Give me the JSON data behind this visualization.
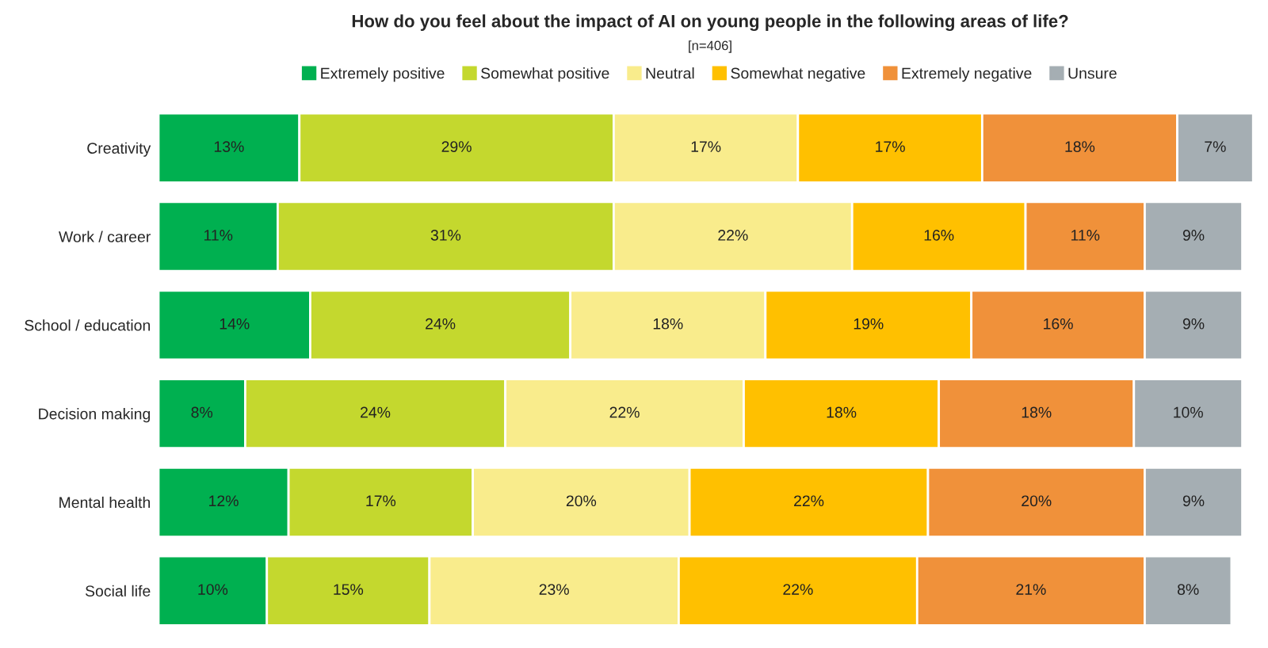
{
  "chart_data": {
    "type": "bar",
    "orientation": "horizontal",
    "stacked": true,
    "title": "How do you feel about the impact of AI on young people in the following areas of life?",
    "subtitle": "[n=406]",
    "categories": [
      "Creativity",
      "Work / career",
      "School / education",
      "Decision making",
      "Mental health",
      "Social life"
    ],
    "series": [
      {
        "name": "Extremely positive",
        "color": "#00b050",
        "values": [
          13,
          11,
          14,
          8,
          12,
          10
        ],
        "value_labels": [
          "13%",
          "11%",
          "14%",
          "8%",
          "12%",
          "10%"
        ]
      },
      {
        "name": "Somewhat positive",
        "color": "#c4d82e",
        "values": [
          29,
          31,
          24,
          24,
          17,
          15
        ],
        "value_labels": [
          "29%",
          "31%",
          "24%",
          "24%",
          "17%",
          "15%"
        ]
      },
      {
        "name": "Neutral",
        "color": "#f9ec8c",
        "values": [
          17,
          22,
          18,
          22,
          20,
          23
        ],
        "value_labels": [
          "17%",
          "22%",
          "18%",
          "22%",
          "20%",
          "23%"
        ]
      },
      {
        "name": "Somewhat negative",
        "color": "#ffc000",
        "values": [
          17,
          16,
          19,
          18,
          22,
          22
        ],
        "value_labels": [
          "17%",
          "16%",
          "19%",
          "18%",
          "22%",
          "22%"
        ]
      },
      {
        "name": "Extremely negative",
        "color": "#f0913a",
        "values": [
          18,
          11,
          16,
          18,
          20,
          21
        ],
        "value_labels": [
          "18%",
          "11%",
          "16%",
          "18%",
          "20%",
          "21%"
        ]
      },
      {
        "name": "Unsure",
        "color": "#a5aeb3",
        "values": [
          7,
          9,
          9,
          10,
          9,
          8
        ],
        "value_labels": [
          "7%",
          "9%",
          "9%",
          "10%",
          "9%",
          "8%"
        ]
      }
    ],
    "legend": "top",
    "grid": false
  }
}
